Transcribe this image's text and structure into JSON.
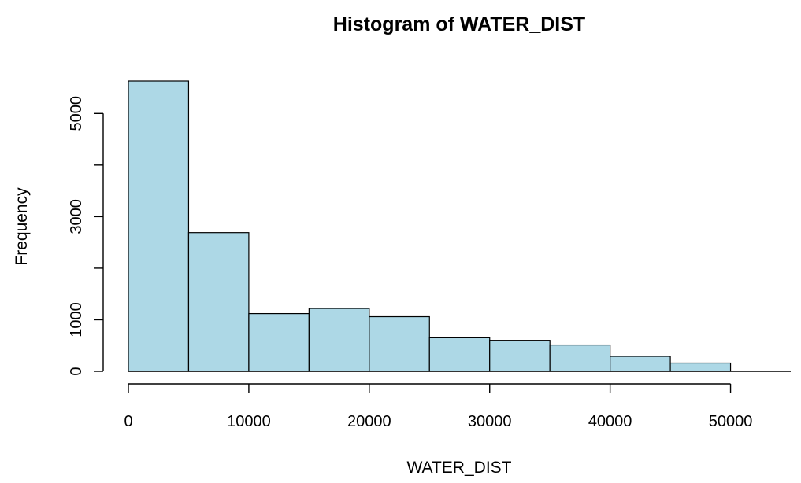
{
  "chart_data": {
    "type": "bar",
    "title": "Histogram of WATER_DIST",
    "xlabel": "WATER_DIST",
    "ylabel": "Frequency",
    "bins": [
      {
        "start": 0,
        "end": 5000,
        "count": 5630
      },
      {
        "start": 5000,
        "end": 10000,
        "count": 2690
      },
      {
        "start": 10000,
        "end": 15000,
        "count": 1120
      },
      {
        "start": 15000,
        "end": 20000,
        "count": 1220
      },
      {
        "start": 20000,
        "end": 25000,
        "count": 1060
      },
      {
        "start": 25000,
        "end": 30000,
        "count": 650
      },
      {
        "start": 30000,
        "end": 35000,
        "count": 600
      },
      {
        "start": 35000,
        "end": 40000,
        "count": 510
      },
      {
        "start": 40000,
        "end": 45000,
        "count": 290
      },
      {
        "start": 45000,
        "end": 50000,
        "count": 160
      }
    ],
    "xlim": [
      0,
      55000
    ],
    "ylim": [
      0,
      5630
    ],
    "xticks": [
      0,
      10000,
      20000,
      30000,
      40000,
      50000
    ],
    "xtick_labels": [
      "0",
      "10000",
      "20000",
      "30000",
      "40000",
      "50000"
    ],
    "yticks": [
      0,
      1000,
      2000,
      3000,
      4000,
      5000
    ],
    "ytick_labels": [
      "0",
      "1000",
      "",
      "3000",
      "",
      "5000"
    ],
    "grid": false,
    "colors": {
      "bar_fill": "#add8e6",
      "bar_stroke": "#000000"
    }
  }
}
